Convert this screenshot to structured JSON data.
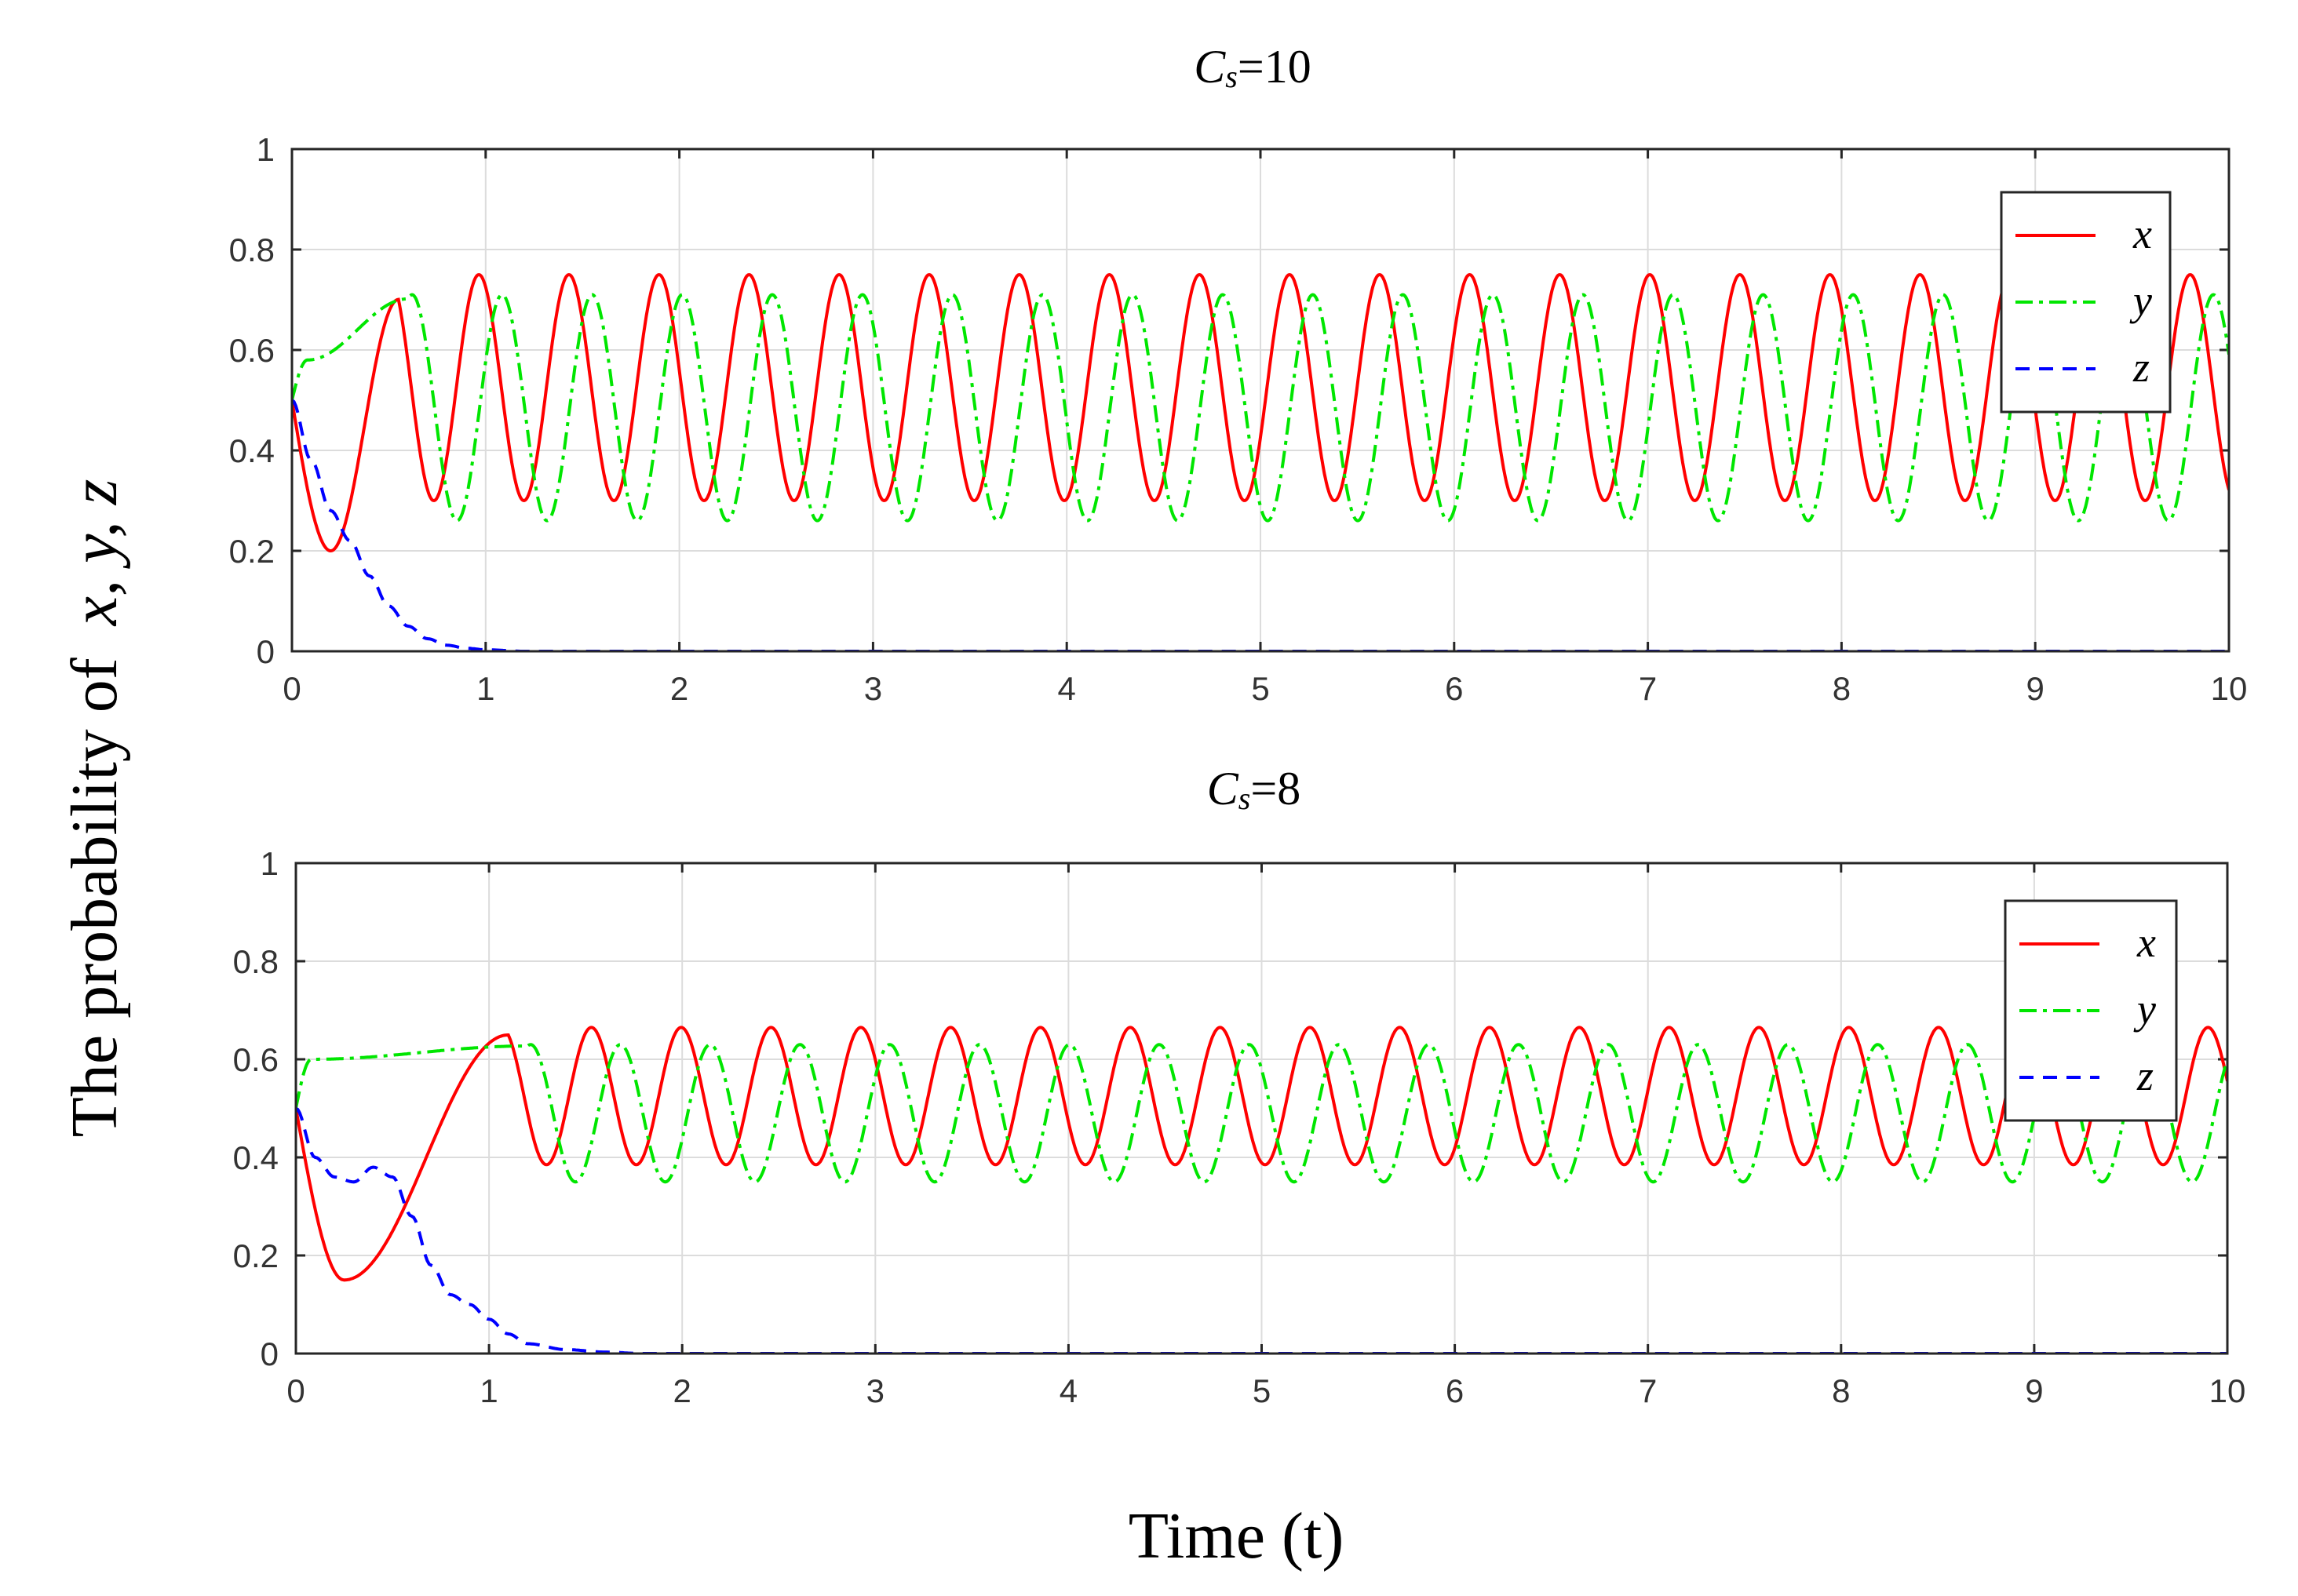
{
  "figure": {
    "ylabel_prefix": "The probability of",
    "ylabel_vars": "x, y, z",
    "xlabel": "Time (t)"
  },
  "colors": {
    "x": "#ff0000",
    "y": "#00e600",
    "z": "#0000ff"
  },
  "chart_data": [
    {
      "type": "line",
      "title_var": "C",
      "title_sub": "s",
      "title_rest": "=10",
      "xlim": [
        0,
        10
      ],
      "ylim": [
        0,
        1
      ],
      "xticks": [
        "0",
        "1",
        "2",
        "3",
        "4",
        "5",
        "6",
        "7",
        "8",
        "9",
        "10"
      ],
      "yticks": [
        "0",
        "0.2",
        "0.4",
        "0.6",
        "0.8",
        "1"
      ],
      "grid": true,
      "legend_position": "top-right",
      "series": [
        {
          "name": "x",
          "style": "solid",
          "start": 0.5,
          "min_first": [
            0.2,
            0.2
          ],
          "mean": 0.525,
          "amplitude": 0.225,
          "period": 0.465,
          "phase_offset": 0.0,
          "first_peak_t": 0.5,
          "settle_t": 0.55
        },
        {
          "name": "y",
          "style": "dash-dot",
          "start": 0.5,
          "first_peak": [
            0.08,
            0.58
          ],
          "mean": 0.485,
          "amplitude": 0.225,
          "period": 0.465,
          "first_peak_t": 0.62,
          "settle_t": 0.6
        },
        {
          "name": "z",
          "style": "dashed",
          "start": 0.5,
          "decay": [
            [
              0,
              0.5
            ],
            [
              0.1,
              0.38
            ],
            [
              0.2,
              0.28
            ],
            [
              0.3,
              0.22
            ],
            [
              0.4,
              0.15
            ],
            [
              0.5,
              0.09
            ],
            [
              0.6,
              0.05
            ],
            [
              0.7,
              0.025
            ],
            [
              0.8,
              0.012
            ],
            [
              0.9,
              0.006
            ],
            [
              1.0,
              0.003
            ],
            [
              1.2,
              0.0
            ],
            [
              10,
              0.0
            ]
          ]
        }
      ]
    },
    {
      "type": "line",
      "title_var": "C",
      "title_sub": "s",
      "title_rest": "=8",
      "xlim": [
        0,
        10
      ],
      "ylim": [
        0,
        1
      ],
      "xticks": [
        "0",
        "1",
        "2",
        "3",
        "4",
        "5",
        "6",
        "7",
        "8",
        "9",
        "10"
      ],
      "yticks": [
        "0",
        "0.2",
        "0.4",
        "0.6",
        "0.8",
        "1"
      ],
      "grid": true,
      "legend_position": "top-right",
      "series": [
        {
          "name": "x",
          "style": "solid",
          "start": 0.5,
          "min_first": [
            0.25,
            0.15
          ],
          "mean": 0.525,
          "amplitude": 0.14,
          "period": 0.465,
          "first_peak_t": 0.6,
          "settle_t": 1.1
        },
        {
          "name": "y",
          "style": "dash-dot",
          "start": 0.5,
          "first_peak": [
            0.08,
            0.6
          ],
          "mean": 0.49,
          "amplitude": 0.14,
          "period": 0.465,
          "first_peak_t": 0.75,
          "settle_t": 1.2
        },
        {
          "name": "z",
          "style": "dashed",
          "start": 0.5,
          "decay": [
            [
              0,
              0.5
            ],
            [
              0.1,
              0.4
            ],
            [
              0.2,
              0.36
            ],
            [
              0.3,
              0.35
            ],
            [
              0.4,
              0.38
            ],
            [
              0.5,
              0.36
            ],
            [
              0.6,
              0.28
            ],
            [
              0.7,
              0.18
            ],
            [
              0.8,
              0.12
            ],
            [
              0.9,
              0.1
            ],
            [
              1.0,
              0.07
            ],
            [
              1.1,
              0.04
            ],
            [
              1.2,
              0.02
            ],
            [
              1.4,
              0.008
            ],
            [
              1.6,
              0.003
            ],
            [
              1.8,
              0.0
            ],
            [
              10,
              0.0
            ]
          ]
        }
      ]
    }
  ]
}
